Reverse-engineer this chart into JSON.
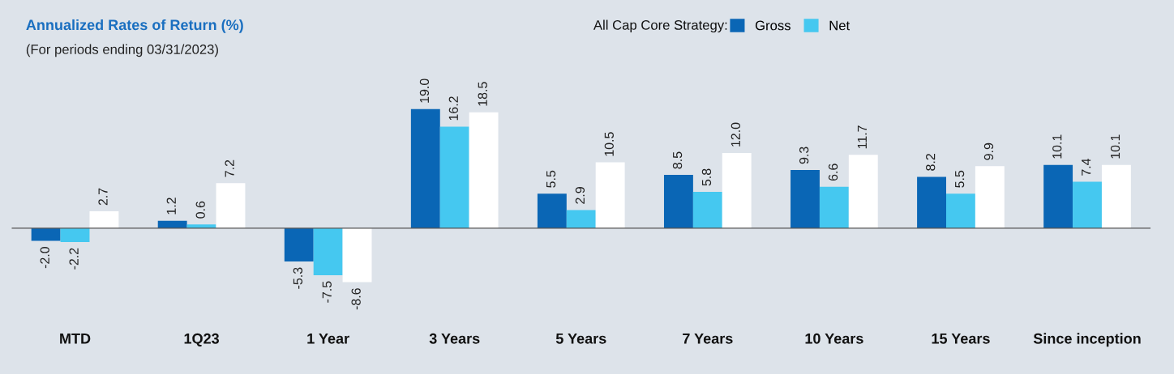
{
  "chart_data": {
    "type": "bar",
    "title": "Annualized Rates of Return (%)",
    "subtitle": "(For periods ending 03/31/2023)",
    "legend_title": "All Cap Core Strategy:",
    "categories": [
      "MTD",
      "1Q23",
      "1 Year",
      "3 Years",
      "5 Years",
      "7 Years",
      "10 Years",
      "15 Years",
      "Since inception"
    ],
    "series": [
      {
        "name": "Gross",
        "color": "#0a66b5",
        "values": [
          -2.0,
          1.2,
          -5.3,
          19.0,
          5.5,
          8.5,
          9.3,
          8.2,
          10.1
        ],
        "value_labels": [
          "-2.0",
          "1.2",
          "-5.3",
          "19.0",
          "5.5",
          "8.5",
          "9.3",
          "8.2",
          "10.1"
        ]
      },
      {
        "name": "Net",
        "color": "#45c8f0",
        "values": [
          -2.2,
          0.6,
          -7.5,
          16.2,
          2.9,
          5.8,
          6.6,
          5.5,
          7.4
        ],
        "value_labels": [
          "-2.2",
          "0.6",
          "-7.5",
          "16.2",
          "2.9",
          "5.8",
          "6.6",
          "5.5",
          "7.4"
        ]
      },
      {
        "color": "#ffffff",
        "values": [
          2.7,
          7.2,
          -8.6,
          18.5,
          10.5,
          12.0,
          11.7,
          9.9,
          10.1
        ],
        "value_labels": [
          "2.7",
          "7.2",
          "-8.6",
          "18.5",
          "10.5",
          "12.0",
          "11.7",
          "9.9",
          "10.1"
        ]
      }
    ],
    "legend": "top right"
  }
}
